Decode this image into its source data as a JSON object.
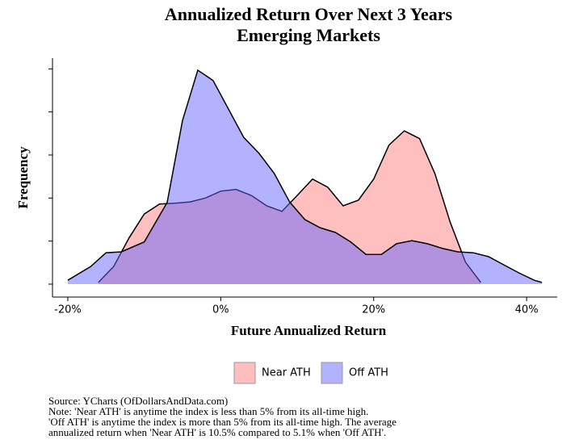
{
  "chart_data": {
    "type": "density",
    "title": [
      "Annualized Return Over Next 3 Years",
      "Emerging Markets"
    ],
    "x_label": "Future Annualized Return",
    "y_label": "Frequency",
    "xlim": [
      -22,
      44
    ],
    "xticks": [
      {
        "value": -20,
        "label": "-20%"
      },
      {
        "value": 0,
        "label": "0%"
      },
      {
        "value": 20,
        "label": "20%"
      },
      {
        "value": 40,
        "label": "40%"
      }
    ],
    "ylim": [
      -0.3,
      5.25
    ],
    "yticks": [
      0,
      1,
      2,
      3,
      4,
      5
    ],
    "series": [
      {
        "name": "Near ATH",
        "color": "#ff7f7f",
        "x": [
          -16,
          -14,
          -12,
          -10,
          -8,
          -6,
          -4,
          -2,
          0,
          2,
          4,
          6,
          8,
          10,
          12,
          14,
          16,
          18,
          20,
          22,
          24,
          26,
          28,
          30,
          32,
          34
        ],
        "values": [
          0.04,
          0.41,
          1.07,
          1.63,
          1.86,
          1.88,
          1.91,
          2.0,
          2.16,
          2.2,
          2.06,
          1.82,
          1.69,
          2.06,
          2.44,
          2.25,
          1.82,
          1.95,
          2.44,
          3.23,
          3.56,
          3.38,
          2.57,
          1.44,
          0.51,
          0.04
        ]
      },
      {
        "name": "Off ATH",
        "color": "#6666ff",
        "x": [
          -20,
          -17,
          -15,
          -13,
          -10,
          -7,
          -5,
          -3,
          -1,
          1,
          3,
          5,
          7,
          9,
          11,
          13,
          15,
          17,
          19,
          21,
          23,
          25,
          27,
          29,
          31,
          33,
          35,
          37,
          39,
          41,
          42
        ],
        "values": [
          0.09,
          0.41,
          0.73,
          0.75,
          0.98,
          1.9,
          3.8,
          4.97,
          4.73,
          4.07,
          3.41,
          3.04,
          2.57,
          1.91,
          1.5,
          1.31,
          1.2,
          0.98,
          0.69,
          0.69,
          0.94,
          1.01,
          0.94,
          0.83,
          0.75,
          0.73,
          0.64,
          0.45,
          0.26,
          0.09,
          0.04
        ]
      }
    ],
    "notes": [
      "Source: YCharts (OfDollarsAndData.com)",
      "Note: 'Near ATH' is anytime the index is less than 5% from its all-time high.",
      "'Off ATH' is anytime the index is more than 5% from its all-time high. The average",
      "annualized return when 'Near ATH' is 10.5% compared to 5.1% when 'Off ATH'."
    ]
  }
}
